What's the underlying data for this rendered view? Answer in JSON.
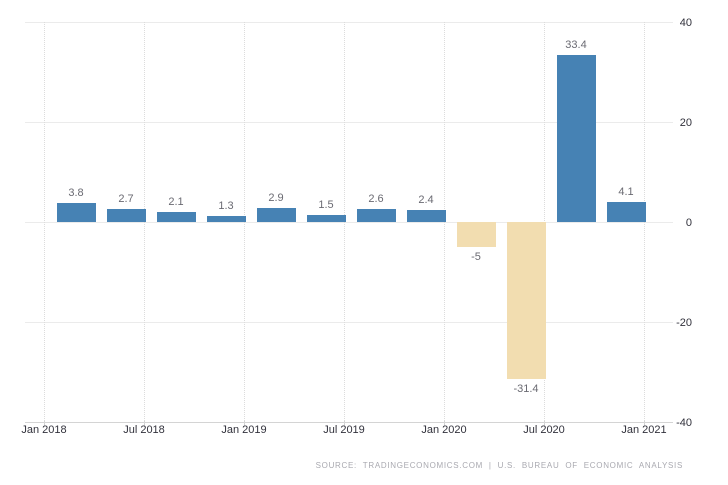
{
  "chart_data": {
    "type": "bar",
    "title": "",
    "xlabel": "",
    "ylabel": "",
    "x_tick_labels": [
      "Jan 2018",
      "Jul 2018",
      "Jan 2019",
      "Jul 2019",
      "Jan 2020",
      "Jul 2020",
      "Jan 2021"
    ],
    "y_ticks": [
      40,
      20,
      0,
      -20,
      -40
    ],
    "ylim": [
      -40,
      40
    ],
    "values": [
      3.8,
      2.7,
      2.1,
      1.3,
      2.9,
      1.5,
      2.6,
      2.4,
      -5,
      -31.4,
      33.4,
      4.1
    ],
    "value_labels": [
      "3.8",
      "2.7",
      "2.1",
      "1.3",
      "2.9",
      "1.5",
      "2.6",
      "2.4",
      "-5",
      "-31.4",
      "33.4",
      "4.1"
    ],
    "colors": {
      "positive_bar": "#4682b4",
      "negative_bar": "#f2ddb0",
      "value_label": "#6a6a72",
      "axis_label": "#32323c",
      "gridline": "#ebebeb",
      "source_text": "#a9a9b0"
    },
    "grid": true,
    "legend_position": "none",
    "source": "SOURCE: TRADINGECONOMICS.COM | U.S. BUREAU OF ECONOMIC ANALYSIS"
  }
}
